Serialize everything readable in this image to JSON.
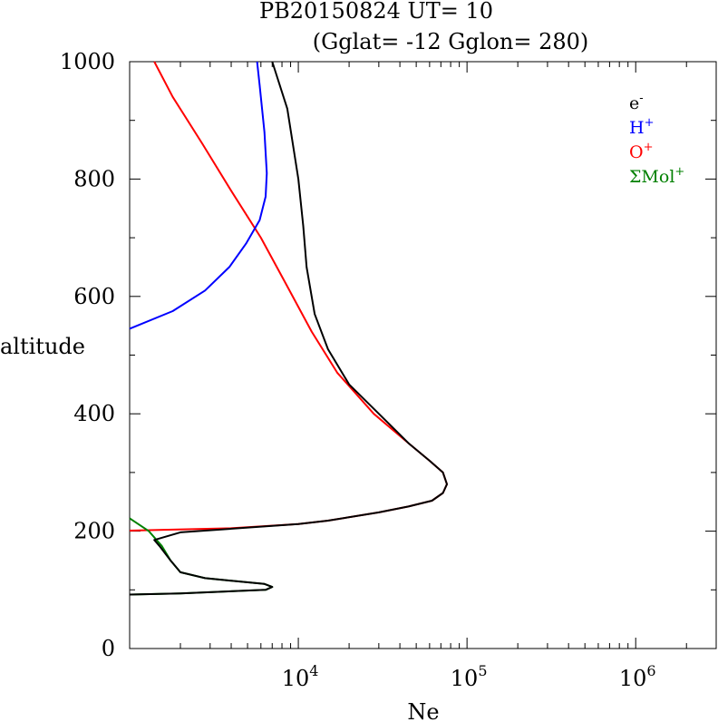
{
  "chart_data": {
    "type": "line",
    "title_line1": "PB20150824   UT=  10",
    "title_line2": "(Gglat= -12   Gglon=  280)",
    "xlabel": "Ne",
    "ylabel": "altitude",
    "xscale": "log",
    "xlim": [
      1000,
      3000000
    ],
    "ylim": [
      0,
      1000
    ],
    "x_ticks": [
      {
        "value": 10000,
        "base": "10",
        "exp": "4"
      },
      {
        "value": 100000,
        "base": "10",
        "exp": "5"
      },
      {
        "value": 1000000,
        "base": "10",
        "exp": "6"
      }
    ],
    "y_ticks": [
      {
        "value": 0,
        "label": "0"
      },
      {
        "value": 200,
        "label": "200"
      },
      {
        "value": 400,
        "label": "400"
      },
      {
        "value": 600,
        "label": "600"
      },
      {
        "value": 800,
        "label": "800"
      },
      {
        "value": 1000,
        "label": "1000"
      }
    ],
    "legend_position": "top-right",
    "series": [
      {
        "name": "e",
        "sup": "-",
        "color": "#000000",
        "points": [
          [
            1000,
            92
          ],
          [
            2000,
            94
          ],
          [
            6400,
            100
          ],
          [
            7000,
            105
          ],
          [
            6300,
            110
          ],
          [
            2800,
            120
          ],
          [
            2000,
            130
          ],
          [
            1750,
            150
          ],
          [
            1500,
            175
          ],
          [
            1400,
            185
          ],
          [
            2000,
            198
          ],
          [
            10000,
            212
          ],
          [
            15000,
            218
          ],
          [
            30000,
            232
          ],
          [
            45000,
            242
          ],
          [
            62000,
            252
          ],
          [
            72000,
            265
          ],
          [
            76000,
            280
          ],
          [
            72000,
            300
          ],
          [
            60000,
            320
          ],
          [
            45000,
            350
          ],
          [
            30000,
            400
          ],
          [
            20000,
            450
          ],
          [
            15000,
            510
          ],
          [
            12500,
            570
          ],
          [
            11200,
            650
          ],
          [
            10700,
            720
          ],
          [
            10000,
            800
          ],
          [
            8600,
            920
          ],
          [
            7000,
            1000
          ]
        ]
      },
      {
        "name": "H",
        "sup": "+",
        "color": "#0000ff",
        "points": [
          [
            1000,
            545
          ],
          [
            1800,
            575
          ],
          [
            2800,
            610
          ],
          [
            3900,
            650
          ],
          [
            4900,
            690
          ],
          [
            5900,
            730
          ],
          [
            6400,
            770
          ],
          [
            6500,
            810
          ],
          [
            6300,
            880
          ],
          [
            5900,
            960
          ],
          [
            5700,
            1000
          ]
        ]
      },
      {
        "name": "O",
        "sup": "+",
        "color": "#ff0000",
        "points": [
          [
            1000,
            201
          ],
          [
            4000,
            205
          ],
          [
            10000,
            212
          ],
          [
            15000,
            218
          ],
          [
            30000,
            232
          ],
          [
            45000,
            242
          ],
          [
            62000,
            252
          ],
          [
            72000,
            265
          ],
          [
            76000,
            280
          ],
          [
            72000,
            300
          ],
          [
            60000,
            320
          ],
          [
            45000,
            350
          ],
          [
            28000,
            400
          ],
          [
            17000,
            470
          ],
          [
            12000,
            540
          ],
          [
            8500,
            620
          ],
          [
            6000,
            700
          ],
          [
            4000,
            780
          ],
          [
            2700,
            860
          ],
          [
            1800,
            940
          ],
          [
            1400,
            1000
          ]
        ]
      },
      {
        "name": "ΣMol",
        "sup": "+",
        "color": "#008000",
        "points": [
          [
            1000,
            222
          ],
          [
            1300,
            200
          ],
          [
            1550,
            175
          ],
          [
            1750,
            150
          ],
          [
            2000,
            130
          ],
          [
            2800,
            120
          ],
          [
            6300,
            110
          ],
          [
            7000,
            105
          ],
          [
            6400,
            100
          ],
          [
            2000,
            94
          ],
          [
            1000,
            92
          ]
        ]
      }
    ]
  }
}
